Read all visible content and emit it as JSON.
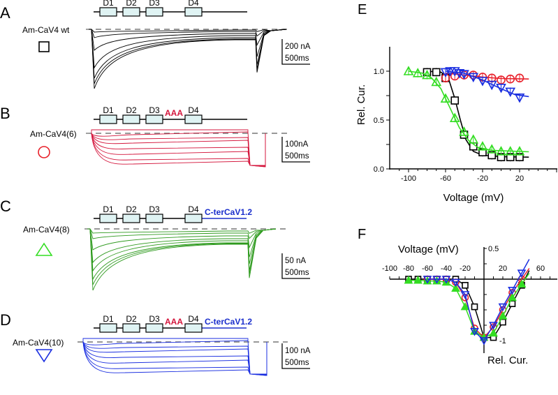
{
  "panels": {
    "A": {
      "letter": "A",
      "construct": "Am-CaV4 wt",
      "domains": [
        "D1",
        "D2",
        "D3",
        "D4"
      ],
      "insert": "",
      "cterm": "",
      "scale_current": "200 nA",
      "scale_time": "500ms",
      "trace_color": "#000000",
      "symbol": "square",
      "symbol_color": "#000000"
    },
    "B": {
      "letter": "B",
      "construct": "Am-CaV4(6)",
      "domains": [
        "D1",
        "D2",
        "D3",
        "D4"
      ],
      "insert": "AAA",
      "cterm": "",
      "scale_current": "100nA",
      "scale_time": "500ms",
      "trace_color": "#d4163c",
      "symbol": "circle",
      "symbol_color": "#e8202a"
    },
    "C": {
      "letter": "C",
      "construct": "Am-CaV4(8)",
      "domains": [
        "D1",
        "D2",
        "D3",
        "D4"
      ],
      "insert": "",
      "cterm": "C-terCaV1.2",
      "scale_current": "50 nA",
      "scale_time": "500ms",
      "trace_color": "#2e9a1e",
      "symbol": "triangle-up",
      "symbol_color": "#33dd22"
    },
    "D": {
      "letter": "D",
      "construct": "Am-CaV4(10)",
      "domains": [
        "D1",
        "D2",
        "D3",
        "D4"
      ],
      "insert": "AAA",
      "cterm": "C-terCaV1.2",
      "scale_current": "100 nA",
      "scale_time": "500ms",
      "trace_color": "#1a2ee0",
      "symbol": "triangle-down",
      "symbol_color": "#1a2ee0"
    }
  },
  "colors": {
    "insert": "#d4163c",
    "cterm": "#1a2ecc",
    "domain_fill": "#dff3f3",
    "baseline_dash": "#777777"
  },
  "chart_data": [
    {
      "panel": "E",
      "type": "line",
      "title": "E",
      "xlabel": "Voltage (mV)",
      "ylabel": "Rel. Cur.",
      "xlim": [
        -120,
        60
      ],
      "ylim": [
        0,
        1.25
      ],
      "xticks": [
        -100,
        -60,
        -20,
        20
      ],
      "yticks": [
        "0.0",
        "0.5",
        "1.0"
      ],
      "series": [
        {
          "name": "Am-CaV4 wt",
          "color": "#000000",
          "marker": "square",
          "x": [
            -80,
            -70,
            -60,
            -50,
            -40,
            -30,
            -20,
            -10,
            0,
            10,
            20
          ],
          "y": [
            0.99,
            0.99,
            0.93,
            0.7,
            0.35,
            0.23,
            0.17,
            0.14,
            0.12,
            0.12,
            0.12
          ],
          "fit": [
            [
              -80,
              1.0
            ],
            [
              -65,
              0.99
            ],
            [
              -57,
              0.93
            ],
            [
              -50,
              0.72
            ],
            [
              -44,
              0.5
            ],
            [
              -38,
              0.3
            ],
            [
              -30,
              0.18
            ],
            [
              -20,
              0.14
            ],
            [
              0,
              0.125
            ],
            [
              30,
              0.12
            ]
          ]
        },
        {
          "name": "Am-CaV4(6)",
          "color": "#e8202a",
          "marker": "circle",
          "x": [
            -60,
            -50,
            -40,
            -30,
            -20,
            -10,
            0,
            10,
            20
          ],
          "y": [
            0.93,
            0.95,
            0.96,
            0.96,
            0.94,
            0.93,
            0.91,
            0.92,
            0.93
          ],
          "fit": [
            [
              -60,
              0.98
            ],
            [
              -40,
              0.96
            ],
            [
              -20,
              0.94
            ],
            [
              0,
              0.925
            ],
            [
              30,
              0.92
            ]
          ]
        },
        {
          "name": "Am-CaV4(8)",
          "color": "#33dd22",
          "marker": "triangle-up",
          "x": [
            -100,
            -90,
            -80,
            -70,
            -60,
            -50,
            -40,
            -30,
            -20,
            -10,
            0,
            10,
            20
          ],
          "y": [
            1.0,
            0.98,
            0.96,
            0.89,
            0.72,
            0.52,
            0.38,
            0.3,
            0.23,
            0.2,
            0.18,
            0.18,
            0.18
          ],
          "fit": [
            [
              -100,
              1.0
            ],
            [
              -85,
              0.98
            ],
            [
              -75,
              0.93
            ],
            [
              -65,
              0.82
            ],
            [
              -55,
              0.62
            ],
            [
              -45,
              0.42
            ],
            [
              -35,
              0.29
            ],
            [
              -25,
              0.22
            ],
            [
              -10,
              0.19
            ],
            [
              30,
              0.175
            ]
          ]
        },
        {
          "name": "Am-CaV4(10)",
          "color": "#1a2ee0",
          "marker": "triangle-down",
          "x": [
            -60,
            -55,
            -50,
            -45,
            -40,
            -30,
            -20,
            -10,
            0,
            10,
            20
          ],
          "y": [
            0.99,
            1.0,
            1.0,
            0.98,
            0.97,
            0.94,
            0.9,
            0.86,
            0.83,
            0.79,
            0.73
          ],
          "fit": [
            [
              -60,
              1.0
            ],
            [
              -40,
              0.98
            ],
            [
              -20,
              0.91
            ],
            [
              0,
              0.82
            ],
            [
              15,
              0.76
            ],
            [
              30,
              0.74
            ]
          ]
        }
      ]
    },
    {
      "panel": "F",
      "type": "line",
      "title": "F",
      "xlabel": "Voltage (mV)",
      "ylabel": "Rel. Cur.",
      "xlim": [
        -100,
        70
      ],
      "ylim": [
        -1.05,
        0.55
      ],
      "xticks": [
        -100,
        -80,
        -60,
        -40,
        -20,
        20,
        60
      ],
      "yticks": [
        "0.5",
        "-1"
      ],
      "series": [
        {
          "name": "Am-CaV4 wt",
          "color": "#000000",
          "marker": "square",
          "x": [
            -80,
            -70,
            -60,
            -50,
            -40,
            -30,
            -20,
            -10,
            0,
            10,
            20,
            30,
            40
          ],
          "y": [
            0,
            0,
            0,
            0,
            0,
            0,
            -0.1,
            -0.45,
            -0.95,
            -0.95,
            -0.7,
            -0.4,
            -0.1
          ]
        },
        {
          "name": "Am-CaV4(6)",
          "color": "#e8202a",
          "marker": "circle",
          "x": [
            -60,
            -50,
            -40,
            -30,
            -20,
            -10,
            0,
            10,
            20,
            30,
            40
          ],
          "y": [
            0,
            0,
            0,
            -0.05,
            -0.3,
            -0.8,
            -0.95,
            -0.78,
            -0.5,
            -0.22,
            0.0
          ]
        },
        {
          "name": "Am-CaV4(8)",
          "color": "#33dd22",
          "marker": "triangle-up",
          "x": [
            -80,
            -70,
            -60,
            -50,
            -40,
            -30,
            -20,
            -10,
            0,
            10,
            20,
            30,
            40
          ],
          "y": [
            -0.02,
            -0.02,
            -0.03,
            -0.03,
            -0.05,
            -0.15,
            -0.45,
            -0.85,
            -0.95,
            -0.88,
            -0.6,
            -0.3,
            -0.08
          ]
        },
        {
          "name": "Am-CaV4(10)",
          "color": "#1a2ee0",
          "marker": "triangle-down",
          "x": [
            -60,
            -50,
            -40,
            -30,
            -20,
            -10,
            0,
            10,
            20,
            30,
            40
          ],
          "y": [
            0,
            0,
            0,
            -0.05,
            -0.25,
            -0.85,
            -1.0,
            -0.75,
            -0.45,
            -0.18,
            0.1
          ]
        }
      ]
    }
  ]
}
